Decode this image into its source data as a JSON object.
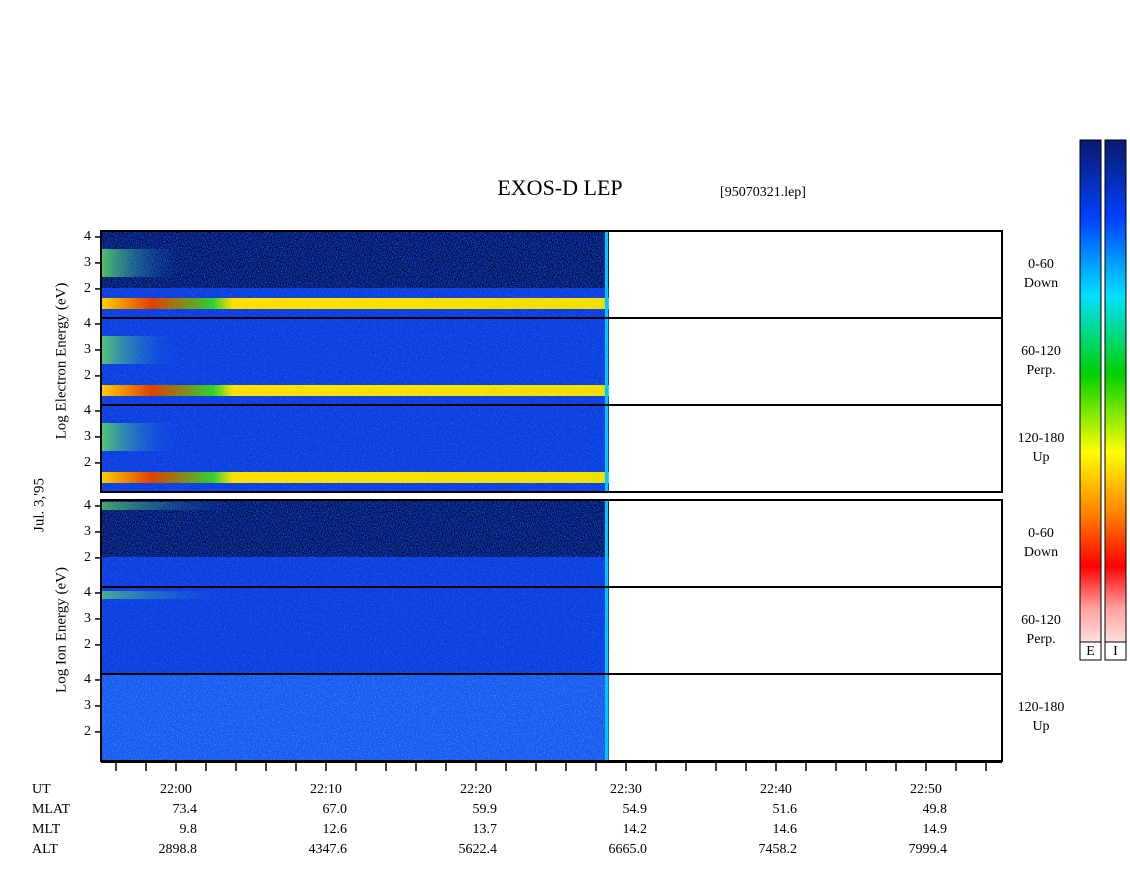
{
  "title": "EXOS-D LEP",
  "file": "[95070321.lep]",
  "date": "Jul. 3,'95",
  "yticks": [
    2,
    3,
    4
  ],
  "ylim": [
    0.88,
    4.23
  ],
  "electron": {
    "ylabel": "Log   Electron   Energy (eV)",
    "panels": [
      [
        "0-60",
        "Down"
      ],
      [
        "60-120",
        "Perp."
      ],
      [
        "120-180",
        "Up"
      ]
    ]
  },
  "ion": {
    "ylabel": "Log   Ion   Energy (eV)",
    "panels": [
      [
        "0-60",
        "Down"
      ],
      [
        "60-120",
        "Perp."
      ],
      [
        "120-180",
        "Up"
      ]
    ]
  },
  "orbit": {
    "rows": [
      [
        "UT",
        "22:00",
        "22:10",
        "22:20",
        "22:30",
        "22:40",
        "22:50"
      ],
      [
        "MLAT",
        "73.4",
        "67.0",
        "59.9",
        "54.9",
        "51.6",
        "49.8"
      ],
      [
        "MLT",
        "9.8",
        "12.6",
        "13.7",
        "14.2",
        "14.6",
        "14.9"
      ],
      [
        "ALT",
        "2898.8",
        "4347.6",
        "5622.4",
        "6665.0",
        "7458.2",
        "7999.4"
      ]
    ]
  },
  "colorbars": [
    "E",
    "I"
  ]
}
